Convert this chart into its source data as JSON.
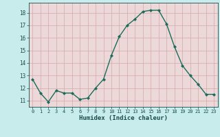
{
  "x": [
    0,
    1,
    2,
    3,
    4,
    5,
    6,
    7,
    8,
    9,
    10,
    11,
    12,
    13,
    14,
    15,
    16,
    17,
    18,
    19,
    20,
    21,
    22,
    23
  ],
  "y": [
    12.7,
    11.6,
    10.9,
    11.8,
    11.6,
    11.6,
    11.1,
    11.2,
    12.0,
    12.7,
    14.6,
    16.1,
    17.0,
    17.5,
    18.1,
    18.2,
    18.2,
    17.1,
    15.3,
    13.8,
    13.0,
    12.3,
    11.5,
    11.5
  ],
  "xlabel": "Humidex (Indice chaleur)",
  "ylim": [
    10.5,
    18.8
  ],
  "xlim": [
    -0.5,
    23.5
  ],
  "yticks": [
    11,
    12,
    13,
    14,
    15,
    16,
    17,
    18
  ],
  "xticks": [
    0,
    1,
    2,
    3,
    4,
    5,
    6,
    7,
    8,
    9,
    10,
    11,
    12,
    13,
    14,
    15,
    16,
    17,
    18,
    19,
    20,
    21,
    22,
    23
  ],
  "line_color": "#1a6b5a",
  "marker_color": "#1a6b5a",
  "fig_bg_color": "#c8ecec",
  "plot_bg_color": "#ecd8d8",
  "grid_color": "#d4a8a8",
  "tick_label_color": "#1a4a4a",
  "xlabel_color": "#1a4a4a",
  "font_family": "monospace"
}
